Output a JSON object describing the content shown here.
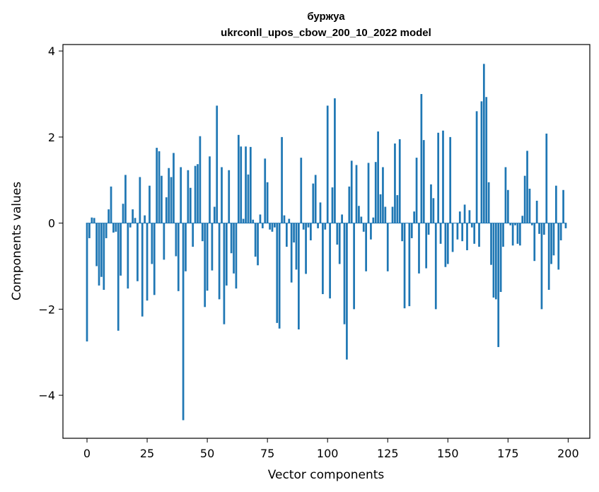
{
  "chart_data": {
    "type": "bar",
    "title_line1": "буржуа",
    "title_line2": "ukrconll_upos_cbow_200_10_2022 model",
    "xlabel": "Vector components",
    "ylabel": "Components values",
    "xlim": [
      -10,
      209
    ],
    "ylim": [
      -5.0,
      4.15
    ],
    "xticks": [
      0,
      25,
      50,
      75,
      100,
      125,
      150,
      175,
      200
    ],
    "yticks": [
      -4,
      -2,
      0,
      2,
      4
    ],
    "bar_color": "#1f77b4",
    "x": [
      0,
      1,
      2,
      3,
      4,
      5,
      6,
      7,
      8,
      9,
      10,
      11,
      12,
      13,
      14,
      15,
      16,
      17,
      18,
      19,
      20,
      21,
      22,
      23,
      24,
      25,
      26,
      27,
      28,
      29,
      30,
      31,
      32,
      33,
      34,
      35,
      36,
      37,
      38,
      39,
      40,
      41,
      42,
      43,
      44,
      45,
      46,
      47,
      48,
      49,
      50,
      51,
      52,
      53,
      54,
      55,
      56,
      57,
      58,
      59,
      60,
      61,
      62,
      63,
      64,
      65,
      66,
      67,
      68,
      69,
      70,
      71,
      72,
      73,
      74,
      75,
      76,
      77,
      78,
      79,
      80,
      81,
      82,
      83,
      84,
      85,
      86,
      87,
      88,
      89,
      90,
      91,
      92,
      93,
      94,
      95,
      96,
      97,
      98,
      99,
      100,
      101,
      102,
      103,
      104,
      105,
      106,
      107,
      108,
      109,
      110,
      111,
      112,
      113,
      114,
      115,
      116,
      117,
      118,
      119,
      120,
      121,
      122,
      123,
      124,
      125,
      126,
      127,
      128,
      129,
      130,
      131,
      132,
      133,
      134,
      135,
      136,
      137,
      138,
      139,
      140,
      141,
      142,
      143,
      144,
      145,
      146,
      147,
      148,
      149,
      150,
      151,
      152,
      153,
      154,
      155,
      156,
      157,
      158,
      159,
      160,
      161,
      162,
      163,
      164,
      165,
      166,
      167,
      168,
      169,
      170,
      171,
      172,
      173,
      174,
      175,
      176,
      177,
      178,
      179,
      180,
      181,
      182,
      183,
      184,
      185,
      186,
      187,
      188,
      189,
      190,
      191,
      192,
      193,
      194,
      195,
      196,
      197,
      198,
      199
    ],
    "values": [
      -2.75,
      -0.35,
      0.13,
      0.12,
      -1.0,
      -1.45,
      -1.25,
      -1.55,
      -0.35,
      0.32,
      0.85,
      -0.22,
      -0.2,
      -2.5,
      -1.22,
      0.45,
      1.12,
      -1.52,
      -0.1,
      0.32,
      0.12,
      -1.35,
      1.07,
      -2.17,
      0.18,
      -1.8,
      0.87,
      -0.95,
      -1.67,
      1.75,
      1.67,
      1.1,
      -0.85,
      0.6,
      1.28,
      1.07,
      1.63,
      -0.77,
      -1.58,
      1.3,
      -4.58,
      -1.12,
      1.23,
      0.82,
      -0.55,
      1.33,
      1.37,
      2.02,
      -0.42,
      -1.95,
      -1.57,
      1.55,
      -1.1,
      0.38,
      2.73,
      -1.77,
      1.3,
      -2.35,
      -1.45,
      1.23,
      -0.7,
      -1.17,
      -1.52,
      2.05,
      1.78,
      0.1,
      1.78,
      1.13,
      1.77,
      0.08,
      -0.78,
      -0.98,
      0.2,
      -0.12,
      1.5,
      0.95,
      -0.15,
      -0.2,
      -0.1,
      -2.32,
      -2.45,
      2.0,
      0.18,
      -0.55,
      0.1,
      -1.38,
      -0.45,
      -1.08,
      -2.47,
      1.52,
      -0.15,
      -1.18,
      -0.1,
      -0.4,
      0.92,
      1.12,
      -0.12,
      0.48,
      -1.65,
      -0.15,
      2.73,
      -1.75,
      0.83,
      2.9,
      -0.5,
      -0.95,
      0.2,
      -2.35,
      -3.17,
      0.85,
      1.45,
      -2.0,
      1.35,
      0.4,
      0.15,
      -0.2,
      -1.12,
      1.4,
      -0.38,
      0.13,
      1.42,
      2.13,
      0.67,
      1.3,
      0.38,
      -1.12,
      0.0,
      0.38,
      1.85,
      0.65,
      1.95,
      -0.42,
      -1.98,
      0.0,
      -1.93,
      -0.35,
      0.27,
      1.52,
      -1.17,
      3.0,
      1.93,
      -1.05,
      -0.27,
      0.9,
      0.58,
      -2.0,
      2.1,
      -0.48,
      2.15,
      -1.02,
      -0.95,
      2.0,
      -0.67,
      0.0,
      -0.38,
      0.27,
      -0.42,
      0.43,
      -0.63,
      0.3,
      -0.1,
      -0.48,
      2.6,
      -0.55,
      2.83,
      3.7,
      2.93,
      0.95,
      -0.97,
      -1.73,
      -1.77,
      -2.88,
      -1.6,
      -0.55,
      1.3,
      0.77,
      -0.05,
      -0.52,
      -0.05,
      -0.48,
      -0.52,
      0.17,
      1.1,
      1.68,
      0.8,
      -0.05,
      -0.88,
      0.52,
      -0.25,
      -2.0,
      -0.27,
      2.08,
      -1.55,
      -0.95,
      -0.75,
      0.87,
      -1.08,
      -0.4,
      0.77,
      -0.12
    ]
  }
}
